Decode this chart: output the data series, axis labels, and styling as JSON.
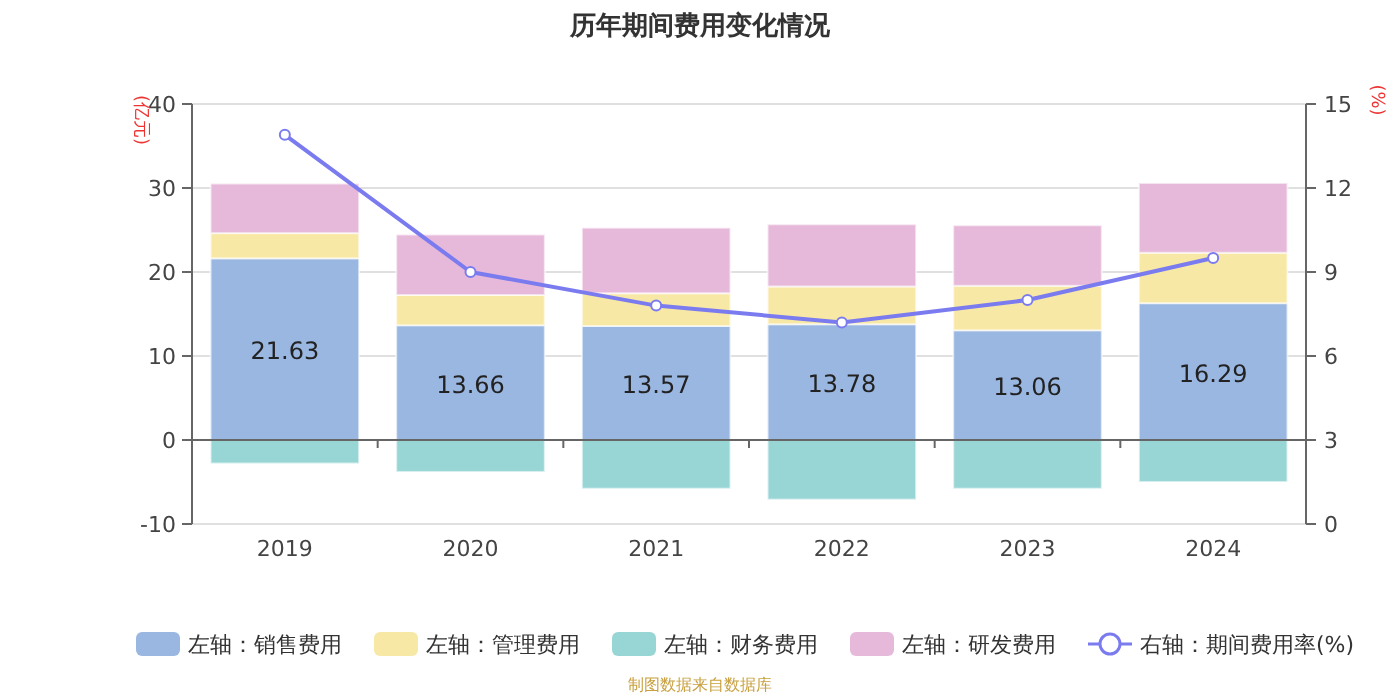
{
  "chart_data": {
    "type": "bar",
    "title": "历年期间费用变化情况",
    "ylabel": "(亿元)",
    "y2label": "(%)",
    "categories": [
      "2019",
      "2020",
      "2021",
      "2022",
      "2023",
      "2024"
    ],
    "stacked": true,
    "grid": "y",
    "legend": "bottom",
    "ylim": [
      -10,
      40
    ],
    "yticks": [
      -10,
      0,
      10,
      20,
      30,
      40
    ],
    "y2lim": [
      0,
      15
    ],
    "y2ticks": [
      0,
      3,
      6,
      9,
      12,
      15
    ],
    "series": [
      {
        "name": "左轴：销售费用",
        "color": "#9ab7e2",
        "values": [
          21.63,
          13.66,
          13.57,
          13.78,
          13.06,
          16.29
        ],
        "value_labels": [
          "21.63",
          "13.66",
          "13.57",
          "13.78",
          "13.06",
          "16.29"
        ]
      },
      {
        "name": "左轴：管理费用",
        "color": "#f8e8a6",
        "values": [
          3.0,
          3.6,
          3.9,
          4.5,
          5.3,
          6.0
        ]
      },
      {
        "name": "左轴：财务费用",
        "color": "#98d5d5",
        "values": [
          -2.8,
          -3.8,
          -5.8,
          -7.1,
          -5.8,
          -5.0
        ]
      },
      {
        "name": "左轴：研发费用",
        "color": "#e6b8d9",
        "values": [
          5.9,
          7.2,
          7.8,
          7.4,
          7.2,
          8.3
        ]
      },
      {
        "name": "右轴：期间费用率(%)",
        "type": "line",
        "axis": "y2",
        "color": "#7b7bf0",
        "marker": "circle",
        "values": [
          13.9,
          9.0,
          7.8,
          7.2,
          8.0,
          9.5
        ]
      }
    ],
    "annotations": [
      "制图数据来自数据库"
    ]
  }
}
